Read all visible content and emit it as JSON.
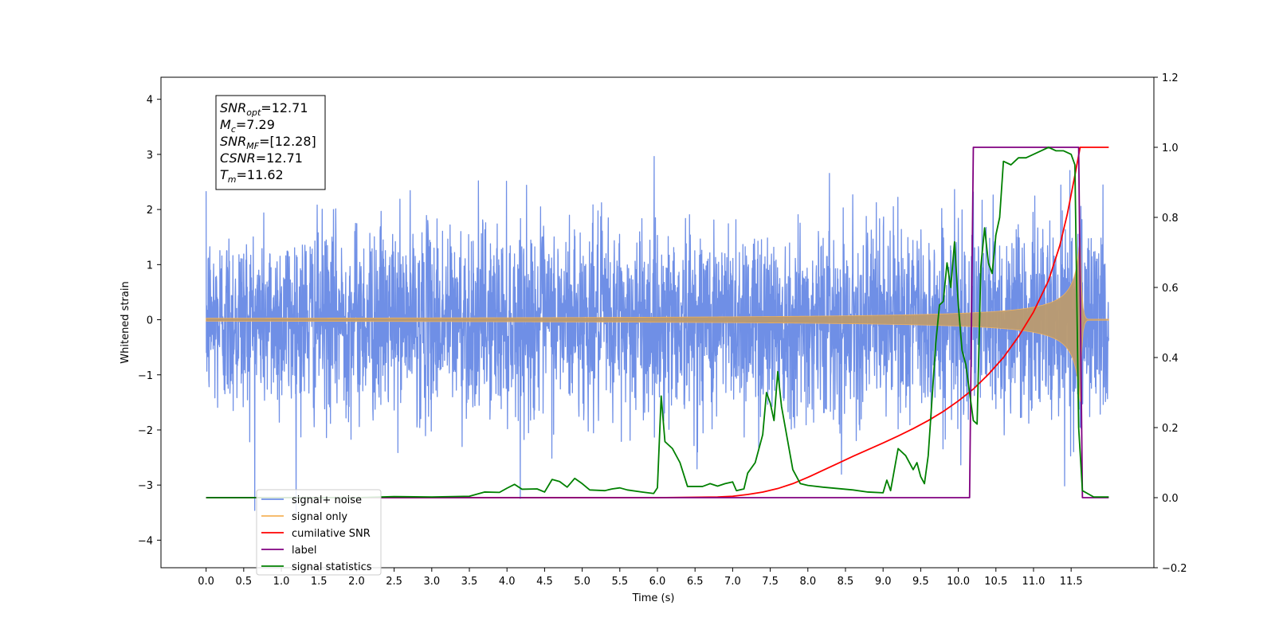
{
  "chart_data": {
    "type": "line",
    "xlabel": "Time (s)",
    "ylabel": "Whitened strain",
    "xlim": [
      -0.6,
      12.6
    ],
    "ylim": [
      -4.5,
      4.4
    ],
    "ylim_right": [
      -0.2,
      1.2
    ],
    "x_ticks": [
      "0.0",
      "0.5",
      "1.0",
      "1.5",
      "2.0",
      "2.5",
      "3.0",
      "3.5",
      "4.0",
      "4.5",
      "5.0",
      "5.5",
      "6.0",
      "6.5",
      "7.0",
      "7.5",
      "8.0",
      "8.5",
      "9.0",
      "9.5",
      "10.0",
      "10.5",
      "11.0",
      "11.5"
    ],
    "y_ticks_left": [
      "4",
      "3",
      "2",
      "1",
      "0",
      "−1",
      "−2",
      "−3",
      "−4"
    ],
    "y_ticks_right": [
      "1.2",
      "1.0",
      "0.8",
      "0.6",
      "0.4",
      "0.2",
      "0.0",
      "−0.2"
    ],
    "info_box": [
      {
        "sym": "SNR",
        "sub": "opt",
        "val": "=12.71"
      },
      {
        "sym": "M",
        "sub": "c",
        "val": "=7.29"
      },
      {
        "sym": "SNR",
        "sub": "MF",
        "val": "=[12.28]"
      },
      {
        "sym": "CSNR",
        "sub": "",
        "val": "=12.71"
      },
      {
        "sym": "T",
        "sub": "m",
        "val": "=11.62"
      }
    ],
    "series": [
      {
        "name": "signal+ noise",
        "color": "#6f8fe6",
        "axis": "left",
        "noise_sigma": 0.85,
        "x_range": [
          0.0,
          12.0
        ]
      },
      {
        "name": "signal only",
        "color": "#f5b35a",
        "axis": "left",
        "chirp_peak_amplitude": 1.6,
        "merger_time": 11.62
      },
      {
        "name": "cumilative SNR",
        "color": "#ff0000",
        "axis": "right",
        "points": [
          [
            0.0,
            0.0
          ],
          [
            6.0,
            0.0
          ],
          [
            6.8,
            0.002
          ],
          [
            7.0,
            0.004
          ],
          [
            7.2,
            0.009
          ],
          [
            7.4,
            0.016
          ],
          [
            7.6,
            0.026
          ],
          [
            7.8,
            0.04
          ],
          [
            8.0,
            0.058
          ],
          [
            8.2,
            0.078
          ],
          [
            8.4,
            0.098
          ],
          [
            8.6,
            0.118
          ],
          [
            8.8,
            0.137
          ],
          [
            9.0,
            0.156
          ],
          [
            9.2,
            0.176
          ],
          [
            9.4,
            0.197
          ],
          [
            9.6,
            0.22
          ],
          [
            9.8,
            0.246
          ],
          [
            10.0,
            0.276
          ],
          [
            10.2,
            0.31
          ],
          [
            10.4,
            0.352
          ],
          [
            10.6,
            0.4
          ],
          [
            10.8,
            0.46
          ],
          [
            11.0,
            0.53
          ],
          [
            11.2,
            0.62
          ],
          [
            11.35,
            0.72
          ],
          [
            11.45,
            0.81
          ],
          [
            11.55,
            0.92
          ],
          [
            11.62,
            1.0
          ],
          [
            12.0,
            1.0
          ]
        ]
      },
      {
        "name": "label",
        "color": "#800080",
        "axis": "right",
        "points": [
          [
            0.0,
            0.0
          ],
          [
            10.15,
            0.0
          ],
          [
            10.2,
            1.0
          ],
          [
            11.6,
            1.0
          ],
          [
            11.65,
            0.0
          ],
          [
            12.0,
            0.0
          ]
        ]
      },
      {
        "name": "signal statistics",
        "color": "#008000",
        "axis": "right",
        "points": [
          [
            0.0,
            0.0
          ],
          [
            2.0,
            0.0
          ],
          [
            2.5,
            0.003
          ],
          [
            3.0,
            0.002
          ],
          [
            3.5,
            0.004
          ],
          [
            3.7,
            0.016
          ],
          [
            3.9,
            0.015
          ],
          [
            4.0,
            0.027
          ],
          [
            4.1,
            0.038
          ],
          [
            4.2,
            0.024
          ],
          [
            4.4,
            0.025
          ],
          [
            4.5,
            0.016
          ],
          [
            4.6,
            0.052
          ],
          [
            4.7,
            0.046
          ],
          [
            4.8,
            0.03
          ],
          [
            4.9,
            0.055
          ],
          [
            5.0,
            0.04
          ],
          [
            5.1,
            0.022
          ],
          [
            5.3,
            0.02
          ],
          [
            5.4,
            0.025
          ],
          [
            5.5,
            0.028
          ],
          [
            5.6,
            0.022
          ],
          [
            5.8,
            0.016
          ],
          [
            5.95,
            0.012
          ],
          [
            6.0,
            0.028
          ],
          [
            6.05,
            0.29
          ],
          [
            6.1,
            0.16
          ],
          [
            6.2,
            0.14
          ],
          [
            6.3,
            0.1
          ],
          [
            6.4,
            0.032
          ],
          [
            6.6,
            0.032
          ],
          [
            6.7,
            0.04
          ],
          [
            6.8,
            0.033
          ],
          [
            6.9,
            0.04
          ],
          [
            7.0,
            0.045
          ],
          [
            7.05,
            0.02
          ],
          [
            7.15,
            0.025
          ],
          [
            7.2,
            0.07
          ],
          [
            7.3,
            0.1
          ],
          [
            7.4,
            0.18
          ],
          [
            7.45,
            0.3
          ],
          [
            7.5,
            0.27
          ],
          [
            7.55,
            0.22
          ],
          [
            7.6,
            0.36
          ],
          [
            7.65,
            0.26
          ],
          [
            7.7,
            0.2
          ],
          [
            7.8,
            0.08
          ],
          [
            7.9,
            0.04
          ],
          [
            8.0,
            0.035
          ],
          [
            8.2,
            0.03
          ],
          [
            8.4,
            0.026
          ],
          [
            8.6,
            0.022
          ],
          [
            8.8,
            0.016
          ],
          [
            9.0,
            0.014
          ],
          [
            9.05,
            0.05
          ],
          [
            9.1,
            0.02
          ],
          [
            9.2,
            0.14
          ],
          [
            9.3,
            0.12
          ],
          [
            9.4,
            0.08
          ],
          [
            9.45,
            0.1
          ],
          [
            9.5,
            0.06
          ],
          [
            9.55,
            0.04
          ],
          [
            9.6,
            0.12
          ],
          [
            9.7,
            0.44
          ],
          [
            9.75,
            0.55
          ],
          [
            9.8,
            0.56
          ],
          [
            9.85,
            0.67
          ],
          [
            9.9,
            0.6
          ],
          [
            9.95,
            0.73
          ],
          [
            10.0,
            0.55
          ],
          [
            10.05,
            0.42
          ],
          [
            10.1,
            0.38
          ],
          [
            10.2,
            0.22
          ],
          [
            10.25,
            0.21
          ],
          [
            10.3,
            0.66
          ],
          [
            10.35,
            0.77
          ],
          [
            10.4,
            0.67
          ],
          [
            10.45,
            0.64
          ],
          [
            10.5,
            0.75
          ],
          [
            10.55,
            0.8
          ],
          [
            10.6,
            0.96
          ],
          [
            10.7,
            0.95
          ],
          [
            10.8,
            0.97
          ],
          [
            10.9,
            0.97
          ],
          [
            11.0,
            0.98
          ],
          [
            11.1,
            0.99
          ],
          [
            11.2,
            1.0
          ],
          [
            11.3,
            0.99
          ],
          [
            11.4,
            0.99
          ],
          [
            11.5,
            0.98
          ],
          [
            11.55,
            0.95
          ],
          [
            11.6,
            0.2
          ],
          [
            11.65,
            0.02
          ],
          [
            11.8,
            0.002
          ],
          [
            12.0,
            0.002
          ]
        ]
      }
    ],
    "legend": {
      "placement": "lower-left"
    },
    "grid": false
  }
}
